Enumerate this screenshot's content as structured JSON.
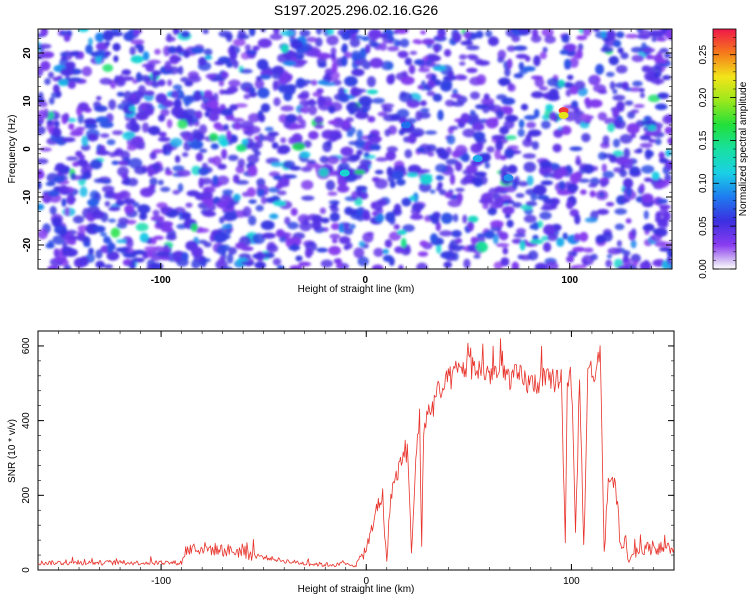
{
  "title": "S197.2025.296.02.16.G26",
  "chart_data": [
    {
      "type": "heatmap",
      "title": "S197.2025.296.02.16.G26",
      "xlabel": "Height of straight line (km)",
      "ylabel": "Frequency (Hz)",
      "xlim": [
        -160,
        150
      ],
      "ylim": [
        -25,
        25
      ],
      "xticks": [
        "-100",
        "0",
        "100"
      ],
      "yticks": [
        "-20",
        "-10",
        "0",
        "10",
        "20"
      ],
      "colorbar": {
        "label": "Normalized spectral amplitude",
        "range": [
          0.0,
          0.28
        ],
        "ticks": [
          "0.00",
          "0.05",
          "0.10",
          "0.15",
          "0.20",
          "0.25"
        ]
      },
      "features": [
        {
          "x": 97,
          "y": 8,
          "value": 0.27
        },
        {
          "x": 97,
          "y": 7,
          "value": 0.22
        },
        {
          "x": -10,
          "y": -5,
          "value": 0.12
        },
        {
          "x": 55,
          "y": -2,
          "value": 0.1
        },
        {
          "x": 70,
          "y": -6,
          "value": 0.09
        },
        {
          "x": 20,
          "y": 5,
          "value": 0.08
        }
      ],
      "grid": false
    },
    {
      "type": "line",
      "xlabel": "Height of straight line (km)",
      "ylabel": "SNR (10 * v/v)",
      "xlim": [
        -160,
        150
      ],
      "ylim": [
        0,
        640
      ],
      "xticks": [
        "-100",
        "0",
        "100"
      ],
      "yticks": [
        "0",
        "200",
        "400",
        "600"
      ],
      "color": "#e8342c",
      "series": [
        {
          "x": [
            -160,
            -140,
            -120,
            -100,
            -90,
            -88,
            -80,
            -70,
            -60,
            -50,
            -40,
            -30,
            -20,
            -10,
            -5,
            0,
            3,
            5,
            8,
            10,
            12,
            15,
            18,
            20,
            22,
            25,
            26,
            27,
            28,
            30,
            35,
            40,
            45,
            50,
            55,
            60,
            65,
            70,
            75,
            80,
            85,
            90,
            95,
            97,
            98,
            99,
            100,
            102,
            104,
            106,
            108,
            110,
            112,
            114,
            116,
            118,
            120,
            122,
            124,
            126,
            128,
            130,
            135,
            140,
            145,
            150
          ],
          "values": [
            20,
            20,
            20,
            20,
            20,
            55,
            60,
            55,
            50,
            35,
            25,
            18,
            15,
            15,
            15,
            60,
            110,
            170,
            200,
            20,
            210,
            260,
            310,
            330,
            60,
            370,
            380,
            60,
            390,
            420,
            470,
            510,
            540,
            550,
            540,
            530,
            530,
            520,
            520,
            500,
            510,
            510,
            520,
            90,
            520,
            520,
            510,
            100,
            520,
            60,
            530,
            540,
            520,
            600,
            60,
            240,
            250,
            200,
            70,
            80,
            20,
            50,
            60,
            60,
            60,
            60
          ]
        }
      ],
      "grid": false
    }
  ]
}
